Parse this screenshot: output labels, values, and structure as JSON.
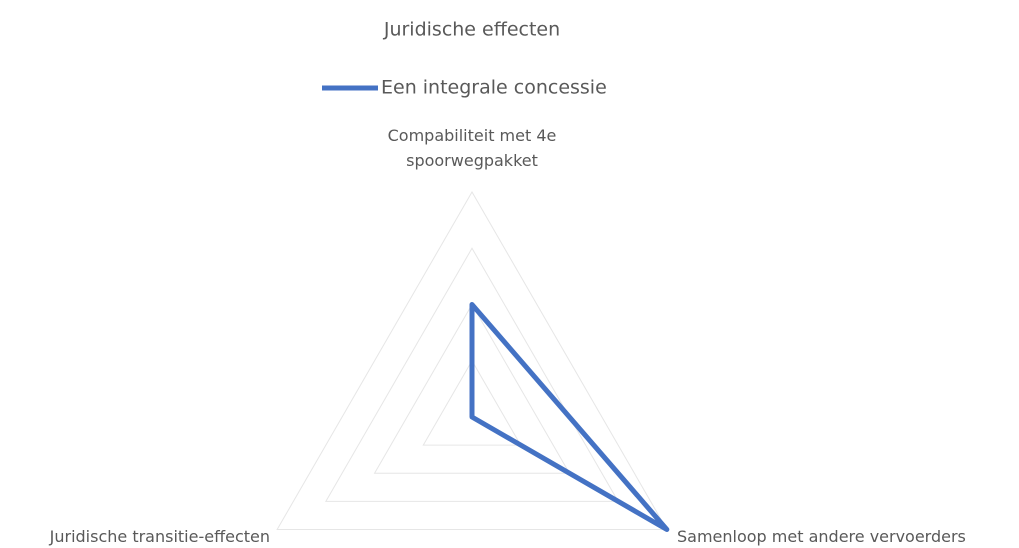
{
  "chart_data": {
    "type": "radar",
    "title": "Juridische effecten",
    "categories": [
      "Compabiliteit met 4e spoorwegpakket",
      "Samenloop met andere vervoerders",
      "Juridische transitie-effecten"
    ],
    "series": [
      {
        "name": "Een integrale concessie",
        "color": "#4472c4",
        "values": [
          2,
          4,
          0
        ]
      }
    ],
    "rlim": [
      0,
      4
    ],
    "rticks": [
      0,
      1,
      2,
      3,
      4
    ],
    "grid": true,
    "legend": "top"
  }
}
